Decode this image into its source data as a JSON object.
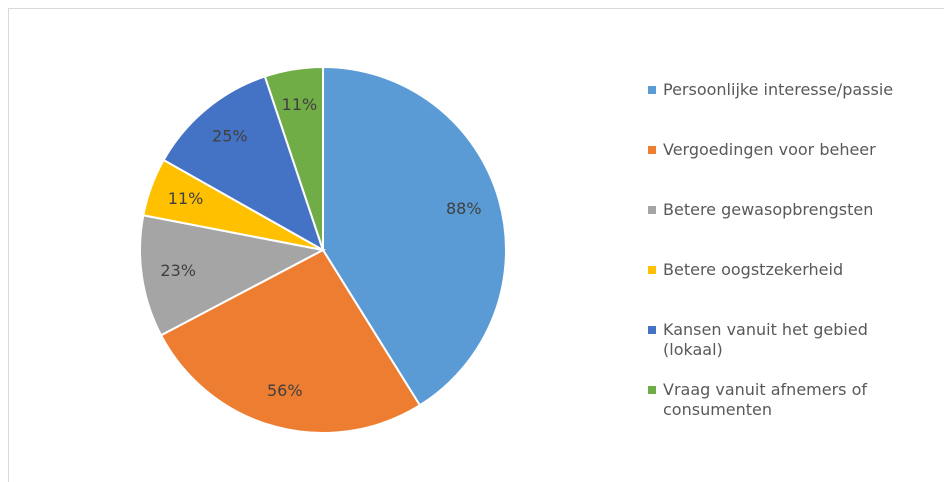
{
  "chart_data": {
    "type": "pie",
    "categories": [
      "Persoonlijke interesse/passie",
      "Vergoedingen voor beheer",
      "Betere gewasopbrengsten",
      "Betere oogstzekerheid",
      "Kansen vanuit het gebied (lokaal)",
      "Vraag vanuit afnemers of consumenten"
    ],
    "values": [
      88,
      56,
      23,
      11,
      25,
      11
    ],
    "value_labels": [
      "88%",
      "56%",
      "23%",
      "11%",
      "25%",
      "11%"
    ],
    "colors": [
      "#5b9bd5",
      "#ed7d31",
      "#a5a5a5",
      "#ffc000",
      "#4472c4",
      "#70ad47"
    ],
    "legend": "right"
  }
}
